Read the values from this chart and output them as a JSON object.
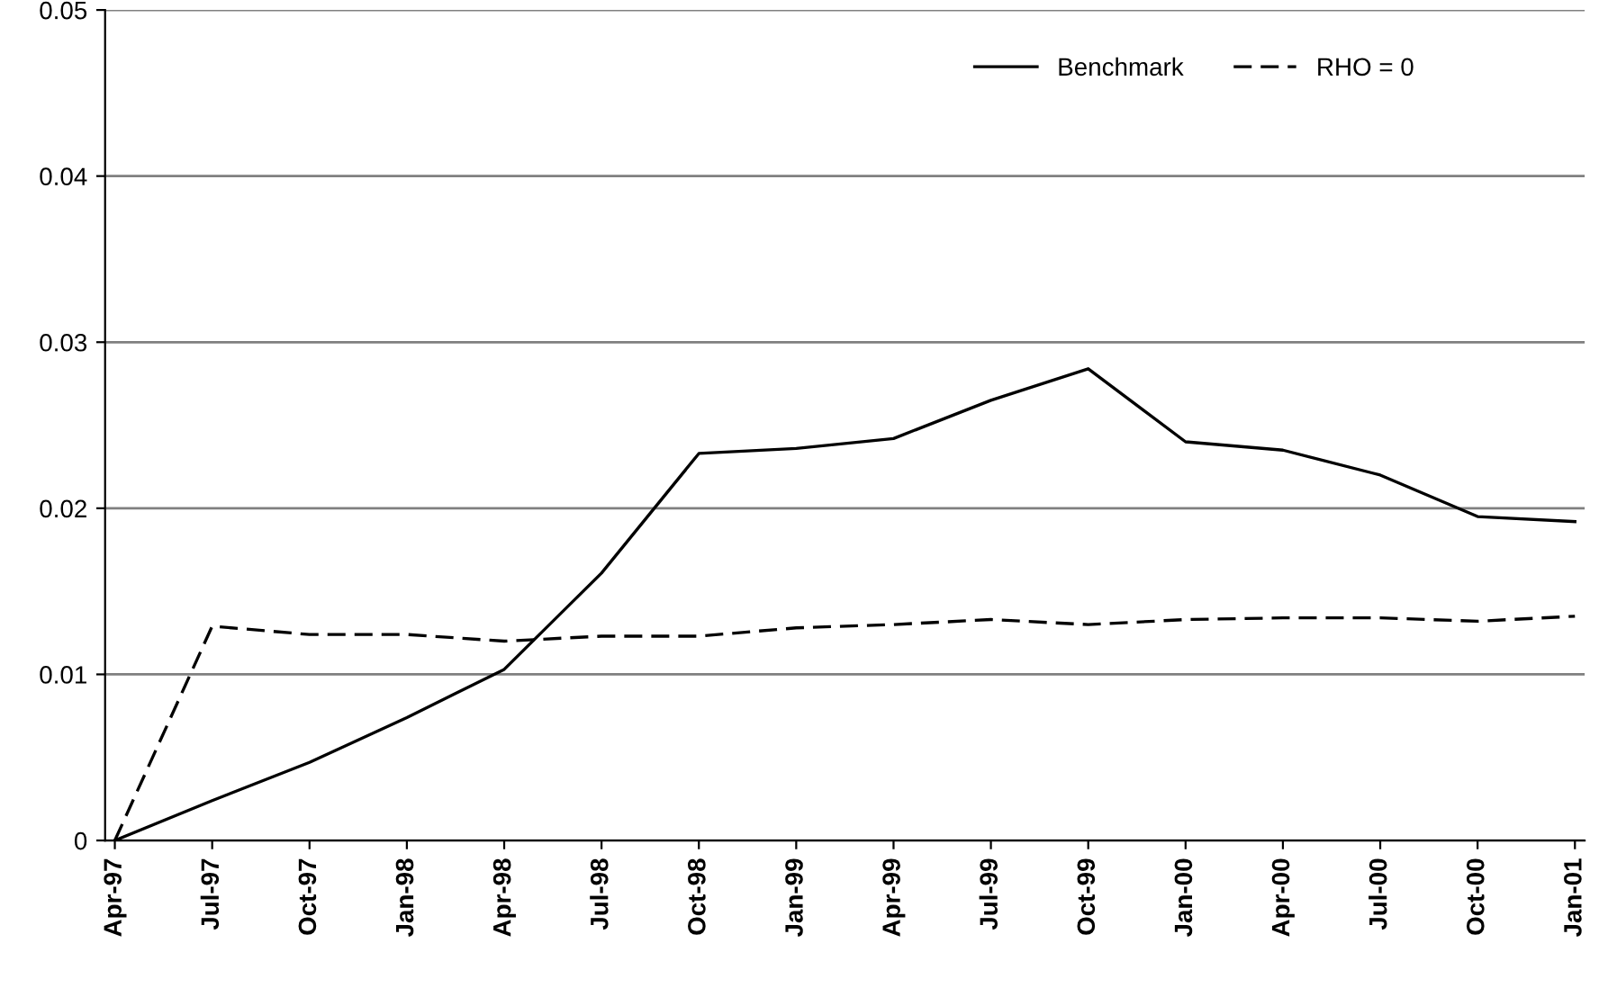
{
  "chart_data": {
    "type": "line",
    "categories": [
      "Apr-97",
      "Jul-97",
      "Oct-97",
      "Jan-98",
      "Apr-98",
      "Jul-98",
      "Oct-98",
      "Jan-99",
      "Apr-99",
      "Jul-99",
      "Oct-99",
      "Jan-00",
      "Apr-00",
      "Jul-00",
      "Oct-00",
      "Jan-01"
    ],
    "series": [
      {
        "name": "Benchmark",
        "color": "#000000",
        "line_style": "solid",
        "values": [
          0,
          0.0024,
          0.0047,
          0.0074,
          0.0103,
          0.0161,
          0.0233,
          0.0236,
          0.0242,
          0.0265,
          0.0284,
          0.024,
          0.0235,
          0.022,
          0.0195,
          0.0192
        ]
      },
      {
        "name": "RHO = 0",
        "color": "#000000",
        "line_style": "dashed",
        "values": [
          0,
          0.0129,
          0.0124,
          0.0124,
          0.012,
          0.0123,
          0.0123,
          0.0128,
          0.013,
          0.0133,
          0.013,
          0.0133,
          0.0134,
          0.0134,
          0.0132,
          0.0135
        ]
      }
    ],
    "ylim": [
      0,
      0.05
    ],
    "yticks": [
      {
        "value": 0,
        "label": "0"
      },
      0.01,
      0.02,
      0.03,
      0.04,
      0.05
    ],
    "grid": "y",
    "legend": "top right",
    "marker": "none"
  }
}
